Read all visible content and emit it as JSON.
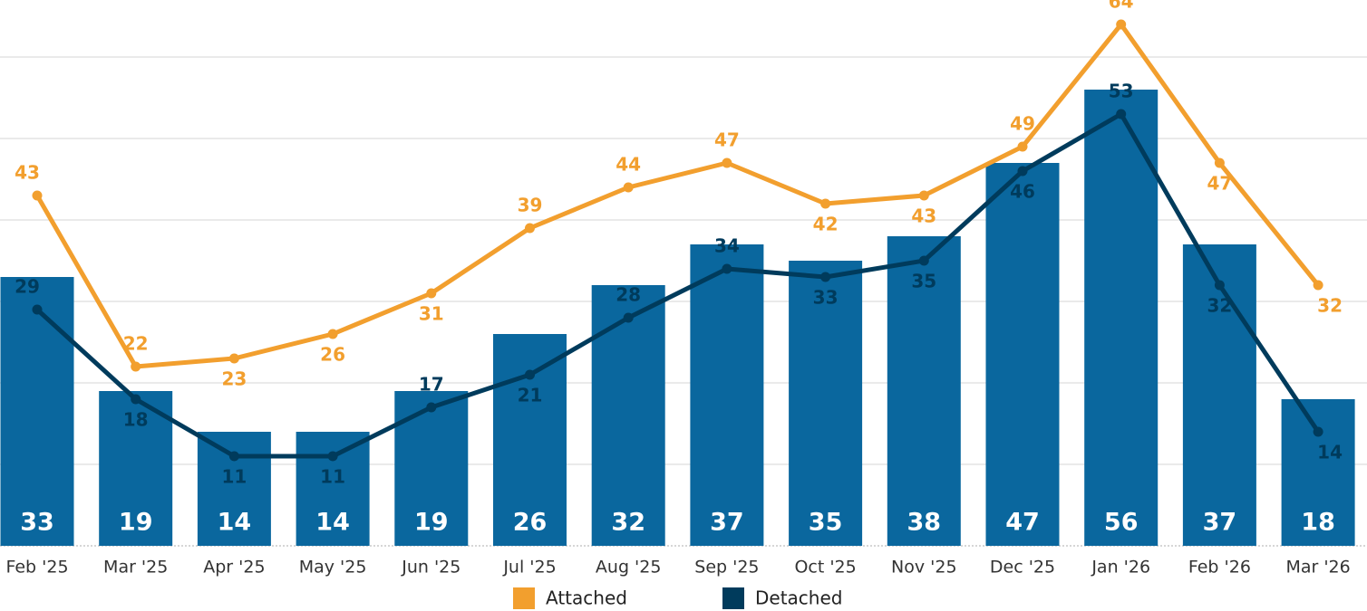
{
  "chart_data": {
    "type": "bar",
    "categories": [
      "Feb '25",
      "Mar '25",
      "Apr '25",
      "May '25",
      "Jun '25",
      "Jul '25",
      "Aug '25",
      "Sep '25",
      "Oct '25",
      "Nov '25",
      "Dec '25",
      "Jan '26",
      "Feb '26",
      "Mar '26"
    ],
    "series": [
      {
        "type": "bar",
        "color": "#0a679e",
        "values": [
          33,
          19,
          14,
          14,
          19,
          26,
          32,
          37,
          35,
          38,
          47,
          56,
          37,
          18
        ]
      },
      {
        "type": "line",
        "name": "Attached",
        "color": "#f29f2e",
        "values": [
          43,
          22,
          23,
          26,
          31,
          39,
          44,
          47,
          42,
          43,
          49,
          64,
          47,
          32
        ]
      },
      {
        "type": "line",
        "name": "Detached",
        "color": "#003b5c",
        "values": [
          29,
          18,
          11,
          11,
          17,
          21,
          28,
          34,
          33,
          35,
          46,
          53,
          32,
          14
        ]
      }
    ],
    "ylim": [
      0,
      67
    ],
    "yticks": [
      0,
      10,
      20,
      30,
      40,
      50,
      60
    ],
    "grid": true,
    "legend": "bottom"
  }
}
